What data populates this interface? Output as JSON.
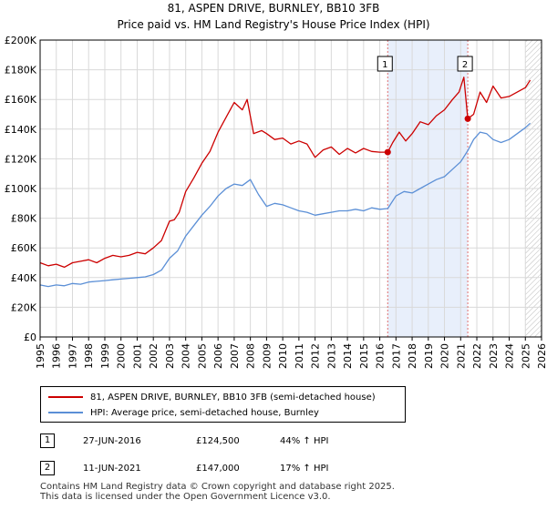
{
  "chart_data": {
    "type": "line",
    "title": "81, ASPEN DRIVE, BURNLEY, BB10 3FB",
    "subtitle": "Price paid vs. HM Land Registry's House Price Index (HPI)",
    "xlim": [
      1995,
      2026
    ],
    "ylim": [
      0,
      200000
    ],
    "x_ticks": [
      1995,
      1996,
      1997,
      1998,
      1999,
      2000,
      2001,
      2002,
      2003,
      2004,
      2005,
      2006,
      2007,
      2008,
      2009,
      2010,
      2011,
      2012,
      2013,
      2014,
      2015,
      2016,
      2017,
      2018,
      2019,
      2020,
      2021,
      2022,
      2023,
      2024,
      2025,
      2026
    ],
    "y_ticks": [
      {
        "value": 0,
        "label": "£0"
      },
      {
        "value": 20000,
        "label": "£20K"
      },
      {
        "value": 40000,
        "label": "£40K"
      },
      {
        "value": 60000,
        "label": "£60K"
      },
      {
        "value": 80000,
        "label": "£80K"
      },
      {
        "value": 100000,
        "label": "£100K"
      },
      {
        "value": 120000,
        "label": "£120K"
      },
      {
        "value": 140000,
        "label": "£140K"
      },
      {
        "value": 160000,
        "label": "£160K"
      },
      {
        "value": 180000,
        "label": "£180K"
      },
      {
        "value": 200000,
        "label": "£200K"
      }
    ],
    "grid": true,
    "shaded_region": [
      2016.49,
      2021.44
    ],
    "projection_start": 2025.0,
    "series": [
      {
        "name": "81, ASPEN DRIVE, BURNLEY, BB10 3FB (semi-detached house)",
        "color": "#cc0000",
        "x": [
          1995.0,
          1995.5,
          1996.0,
          1996.5,
          1997.0,
          1997.5,
          1998.0,
          1998.5,
          1999.0,
          1999.5,
          2000.0,
          2000.5,
          2001.0,
          2001.5,
          2002.0,
          2002.5,
          2003.0,
          2003.3,
          2003.6,
          2004.0,
          2004.5,
          2005.0,
          2005.5,
          2006.0,
          2006.5,
          2007.0,
          2007.5,
          2007.8,
          2008.2,
          2008.7,
          2009.0,
          2009.5,
          2010.0,
          2010.5,
          2011.0,
          2011.5,
          2012.0,
          2012.5,
          2013.0,
          2013.5,
          2014.0,
          2014.5,
          2015.0,
          2015.5,
          2016.0,
          2016.49,
          2016.8,
          2017.2,
          2017.6,
          2018.0,
          2018.5,
          2019.0,
          2019.5,
          2020.0,
          2020.5,
          2020.9,
          2021.2,
          2021.44,
          2021.8,
          2022.2,
          2022.6,
          2023.0,
          2023.5,
          2024.0,
          2024.5,
          2025.0,
          2025.3
        ],
        "y": [
          50000,
          48000,
          49000,
          47000,
          50000,
          51000,
          52000,
          50000,
          53000,
          55000,
          54000,
          55000,
          57000,
          56000,
          60000,
          65000,
          78000,
          79000,
          84000,
          98000,
          107000,
          117000,
          125000,
          138000,
          148000,
          158000,
          153000,
          160000,
          137000,
          139000,
          137000,
          133000,
          134000,
          130000,
          132000,
          130000,
          121000,
          126000,
          128000,
          123000,
          127000,
          124000,
          127000,
          125000,
          124500,
          124500,
          131000,
          138000,
          132000,
          137000,
          145000,
          143000,
          149000,
          153000,
          160000,
          165000,
          175000,
          147000,
          150000,
          165000,
          158000,
          169000,
          161000,
          162000,
          165000,
          168000,
          173000
        ]
      },
      {
        "name": "HPI: Average price, semi-detached house, Burnley",
        "color": "#5b8fd6",
        "x": [
          1995.0,
          1995.5,
          1996.0,
          1996.5,
          1997.0,
          1997.5,
          1998.0,
          1998.5,
          1999.0,
          1999.5,
          2000.0,
          2000.5,
          2001.0,
          2001.5,
          2002.0,
          2002.5,
          2003.0,
          2003.5,
          2004.0,
          2004.5,
          2005.0,
          2005.5,
          2006.0,
          2006.5,
          2007.0,
          2007.5,
          2008.0,
          2008.5,
          2009.0,
          2009.5,
          2010.0,
          2010.5,
          2011.0,
          2011.5,
          2012.0,
          2012.5,
          2013.0,
          2013.5,
          2014.0,
          2014.5,
          2015.0,
          2015.5,
          2016.0,
          2016.49,
          2017.0,
          2017.5,
          2018.0,
          2018.5,
          2019.0,
          2019.5,
          2020.0,
          2020.5,
          2021.0,
          2021.44,
          2021.8,
          2022.2,
          2022.6,
          2023.0,
          2023.5,
          2024.0,
          2024.5,
          2025.0,
          2025.3
        ],
        "y": [
          35000,
          34000,
          35000,
          34500,
          36000,
          35500,
          37000,
          37500,
          38000,
          38500,
          39000,
          39500,
          40000,
          40500,
          42000,
          45000,
          53000,
          58000,
          68000,
          75000,
          82000,
          88000,
          95000,
          100000,
          103000,
          102000,
          106000,
          96000,
          88000,
          90000,
          89000,
          87000,
          85000,
          84000,
          82000,
          83000,
          84000,
          85000,
          85000,
          86000,
          85000,
          87000,
          86000,
          86500,
          95000,
          98000,
          97000,
          100000,
          103000,
          106000,
          108000,
          113000,
          118000,
          125500,
          133000,
          138000,
          137000,
          133000,
          131000,
          133000,
          137000,
          141000,
          144000
        ]
      }
    ],
    "sales": [
      {
        "id": "1",
        "x": 2016.49,
        "y": 124500
      },
      {
        "id": "2",
        "x": 2021.44,
        "y": 147000
      }
    ]
  },
  "legend": {
    "property_label": "81, ASPEN DRIVE, BURNLEY, BB10 3FB (semi-detached house)",
    "hpi_label": "HPI: Average price, semi-detached house, Burnley"
  },
  "sales_table": [
    {
      "id": "1",
      "date": "27-JUN-2016",
      "price": "£124,500",
      "hpi": "44% ↑ HPI"
    },
    {
      "id": "2",
      "date": "11-JUN-2021",
      "price": "£147,000",
      "hpi": "17% ↑ HPI"
    }
  ],
  "footer": {
    "line1": "Contains HM Land Registry data © Crown copyright and database right 2025.",
    "line2": "This data is licensed under the Open Government Licence v3.0."
  }
}
